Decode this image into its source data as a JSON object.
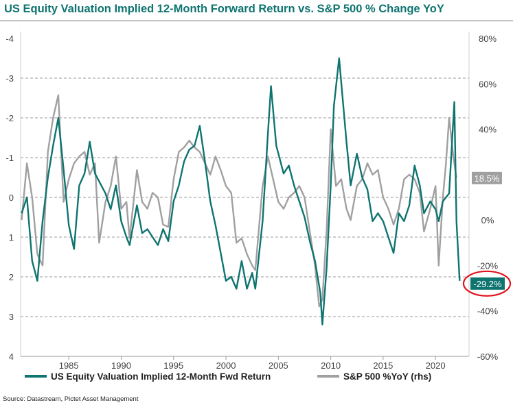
{
  "title": "US Equity Valuation Implied 12-Month Forward Return vs. S&P 500 % Change YoY",
  "source": "Source: Datastream, Pictet Asset Management",
  "colors": {
    "teal": "#0e7470",
    "gray": "#a0a0a0",
    "axis_text": "#444444",
    "grid": "#9a9a9a",
    "highlight_circle": "#e0121a"
  },
  "chart_data": {
    "type": "line",
    "title": "US Equity Valuation Implied 12-Month Forward Return vs. S&P 500 % Change YoY",
    "x_range": [
      1980.4,
      2023.2
    ],
    "x_ticks": [
      1985,
      1990,
      1995,
      2000,
      2005,
      2010,
      2015,
      2020
    ],
    "x_tick_labels": [
      "1985",
      "1990",
      "1995",
      "2000",
      "2005",
      "2010",
      "2015",
      "2020"
    ],
    "y_left": {
      "range": [
        -4,
        4
      ],
      "inverted": true,
      "ticks": [
        -4,
        -3,
        -2,
        -1,
        0,
        1,
        2,
        3,
        4
      ],
      "tick_labels": [
        "-4",
        "-3",
        "-2",
        "-1",
        "0",
        "1",
        "2",
        "3",
        "4"
      ]
    },
    "y_right": {
      "range": [
        -60,
        80
      ],
      "ticks": [
        80,
        60,
        40,
        20,
        0,
        -20,
        -40,
        -60
      ],
      "tick_labels": [
        "80%",
        "60%",
        "40%",
        "20%",
        "0%",
        "-20%",
        "-40%",
        "-60%"
      ]
    },
    "grid": "horizontal dashed",
    "legend_position": "bottom",
    "series": [
      {
        "name": "US Equity Valuation Implied 12-Month Fwd Return",
        "axis": "left",
        "color": "#0e7470",
        "end_label": "-29.2%",
        "x": [
          1980.5,
          1981.0,
          1981.5,
          1982.0,
          1982.5,
          1983.0,
          1983.5,
          1984.0,
          1984.5,
          1985.0,
          1985.5,
          1986.0,
          1986.5,
          1987.0,
          1987.5,
          1987.9,
          1988.5,
          1989.0,
          1989.5,
          1990.0,
          1990.5,
          1990.8,
          1991.5,
          1992.0,
          1992.5,
          1993.0,
          1993.5,
          1994.0,
          1994.5,
          1995.0,
          1995.5,
          1996.0,
          1996.5,
          1997.0,
          1997.5,
          1998.0,
          1998.5,
          1999.0,
          1999.5,
          2000.0,
          2000.5,
          2001.0,
          2001.5,
          2002.0,
          2002.5,
          2002.8,
          2003.5,
          2004.0,
          2004.3,
          2004.8,
          2005.5,
          2006.0,
          2006.5,
          2007.0,
          2007.5,
          2008.0,
          2008.5,
          2009.0,
          2009.2,
          2009.6,
          2010.0,
          2010.3,
          2010.8,
          2011.5,
          2011.9,
          2012.5,
          2013.0,
          2013.5,
          2014.0,
          2014.5,
          2015.0,
          2015.5,
          2016.0,
          2016.5,
          2017.0,
          2017.5,
          2018.0,
          2018.5,
          2018.9,
          2019.5,
          2020.0,
          2020.3,
          2020.7,
          2021.0,
          2021.3,
          2021.6,
          2021.8,
          2022.0,
          2022.3
        ],
        "y": [
          0.4,
          0.0,
          1.6,
          2.1,
          0.6,
          -0.5,
          -1.3,
          -2.0,
          -0.7,
          0.7,
          1.3,
          -0.3,
          -0.6,
          -1.4,
          -0.6,
          -0.4,
          -0.1,
          0.3,
          -0.3,
          0.6,
          1.0,
          1.2,
          0.2,
          0.9,
          0.8,
          1.0,
          1.2,
          0.8,
          1.1,
          0.1,
          -0.3,
          -0.9,
          -1.2,
          -1.3,
          -1.8,
          -0.9,
          0.1,
          0.7,
          1.4,
          2.1,
          2.0,
          2.3,
          1.6,
          2.3,
          1.9,
          2.3,
          0.6,
          -1.6,
          -2.8,
          -1.3,
          -0.6,
          -0.8,
          -0.3,
          0.1,
          0.5,
          1.1,
          1.6,
          2.4,
          3.2,
          1.8,
          -0.3,
          -2.3,
          -3.5,
          -1.4,
          -0.3,
          -1.1,
          -0.5,
          -0.2,
          0.6,
          0.4,
          0.6,
          1.0,
          1.4,
          0.4,
          0.6,
          0.2,
          -0.8,
          -0.3,
          0.4,
          0.1,
          0.3,
          0.6,
          0.1,
          0.0,
          -0.1,
          -1.5,
          -2.4,
          0.6,
          2.1
        ]
      },
      {
        "name": "S&P 500 %YoY (rhs)",
        "axis": "right",
        "color": "#a0a0a0",
        "end_label": "18.5%",
        "x": [
          1980.5,
          1981.0,
          1981.5,
          1982.0,
          1982.5,
          1983.0,
          1983.5,
          1984.0,
          1984.5,
          1985.0,
          1985.5,
          1986.0,
          1986.5,
          1987.0,
          1987.5,
          1987.9,
          1988.5,
          1989.0,
          1989.5,
          1990.0,
          1990.5,
          1990.8,
          1991.5,
          1992.0,
          1992.5,
          1993.0,
          1993.5,
          1994.0,
          1994.5,
          1995.0,
          1995.5,
          1996.0,
          1996.5,
          1997.0,
          1997.5,
          1998.0,
          1998.5,
          1999.0,
          1999.5,
          2000.0,
          2000.5,
          2001.0,
          2001.5,
          2002.0,
          2002.5,
          2002.8,
          2003.5,
          2004.0,
          2004.5,
          2005.0,
          2005.5,
          2006.0,
          2006.5,
          2007.0,
          2007.5,
          2008.0,
          2008.5,
          2008.9,
          2009.2,
          2009.6,
          2010.0,
          2010.5,
          2011.0,
          2011.5,
          2011.9,
          2012.5,
          2013.0,
          2013.5,
          2014.0,
          2014.5,
          2015.0,
          2015.5,
          2016.0,
          2016.5,
          2017.0,
          2017.5,
          2018.0,
          2018.5,
          2018.9,
          2019.5,
          2020.0,
          2020.3,
          2020.7,
          2021.0,
          2021.3,
          2021.7,
          2022.0
        ],
        "y": [
          0,
          25,
          10,
          -15,
          -20,
          30,
          45,
          55,
          8,
          18,
          25,
          28,
          30,
          20,
          25,
          -10,
          8,
          15,
          28,
          5,
          8,
          -8,
          22,
          8,
          5,
          12,
          10,
          -2,
          -3,
          18,
          30,
          32,
          35,
          32,
          30,
          25,
          20,
          28,
          22,
          15,
          12,
          -10,
          -8,
          -15,
          -20,
          -22,
          15,
          28,
          18,
          8,
          5,
          10,
          12,
          15,
          10,
          -5,
          -20,
          -38,
          -35,
          -5,
          40,
          15,
          18,
          5,
          0,
          15,
          18,
          25,
          20,
          22,
          10,
          5,
          -2,
          5,
          18,
          20,
          18,
          12,
          -5,
          5,
          15,
          -20,
          10,
          25,
          45,
          28,
          18.5
        ]
      }
    ]
  },
  "legend": [
    {
      "label": "US Equity Valuation Implied 12-Month Fwd Return",
      "color": "#0e7470"
    },
    {
      "label": "S&P 500 %YoY (rhs)",
      "color": "#a0a0a0"
    }
  ]
}
